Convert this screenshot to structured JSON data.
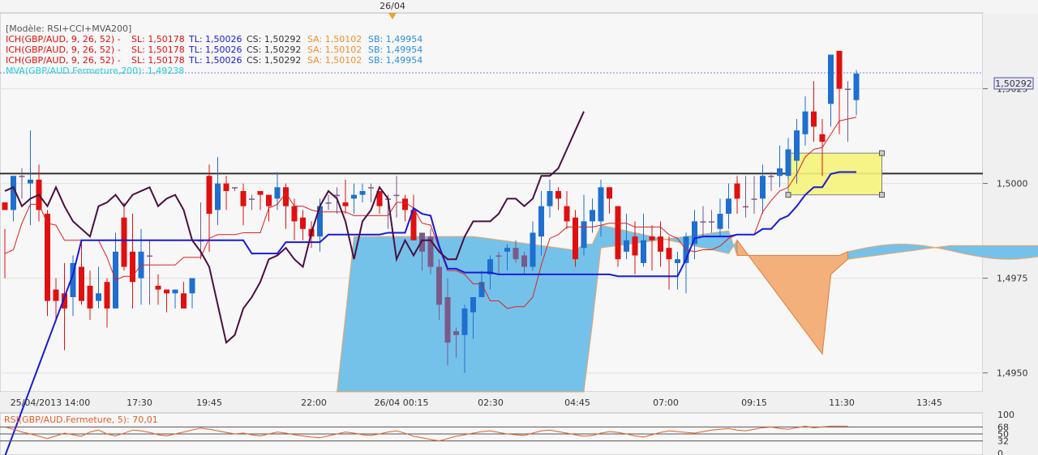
{
  "header": {
    "date_marker": "26/04"
  },
  "legend": {
    "model": "[Modèle: RSI+CCI+MVA200]",
    "ich_lines": [
      {
        "prefix": "ICH(GBP/AUD, 9, 26, 52) -",
        "sl": "SL: 1,50178",
        "tl": "TL: 1,50026",
        "cs": "CS: 1,50292",
        "sa": "SA: 1,50102",
        "sb": "SB: 1,49954"
      },
      {
        "prefix": "ICH(GBP/AUD, 9, 26, 52) -",
        "sl": "SL: 1,50178",
        "tl": "TL: 1,50026",
        "cs": "CS: 1,50292",
        "sa": "SA: 1,50102",
        "sb": "SB: 1,49954"
      },
      {
        "prefix": "ICH(GBP/AUD, 9, 26, 52) -",
        "sl": "SL: 1,50178",
        "tl": "TL: 1,50026",
        "cs": "CS: 1,50292",
        "sa": "SA: 1,50102",
        "sb": "SB: 1,49954"
      }
    ],
    "mva": "MVA(GBP/AUD.Fermeture,200): 1,49238"
  },
  "colors": {
    "bull": "#1e6fd0",
    "bear": "#e01010",
    "neutral": "#7a5a8a",
    "cloud_blue": "#6ec0ea",
    "cloud_orange": "#f4b07a",
    "kijun": "#1a1ad8",
    "tenkan": "#e02020",
    "chikou": "#4a1040",
    "level": "#333333",
    "rsi": "#e0602a",
    "mva": "#22d0e0",
    "zone": "#f6f47a"
  },
  "chart_data": [
    {
      "type": "candlestick",
      "symbol": "GBP/AUD",
      "ylim": [
        1.4945,
        1.5045
      ],
      "yticks": [
        "1,4950",
        "1,4975",
        "1,5000",
        "1,5025"
      ],
      "xticks": [
        "25/04/2013 14:00",
        "17:30",
        "19:45",
        "22:00",
        "26/04 00:15",
        "02:30",
        "04:45",
        "07:00",
        "09:15",
        "11:30",
        "13:45"
      ],
      "last_price": "1,50292",
      "horizontal_level": 1.50026,
      "candles": [
        [
          1.4995,
          1.4993,
          1.4988,
          1.4975
        ],
        [
          1.4993,
          1.5002,
          1.499,
          1.4994
        ],
        [
          1.5002,
          1.5002,
          1.5004,
          1.4996
        ],
        [
          1.5,
          1.5001,
          1.5014,
          1.4989
        ],
        [
          1.5001,
          1.4993,
          1.5005,
          1.499
        ],
        [
          1.4992,
          1.4969,
          1.4993,
          1.4965
        ],
        [
          1.4972,
          1.4969,
          1.4975,
          1.4964
        ],
        [
          1.4971,
          1.4967,
          1.4979,
          1.4956
        ],
        [
          1.497,
          1.4979,
          1.4981,
          1.4965
        ],
        [
          1.4978,
          1.4969,
          1.4985,
          1.4968
        ],
        [
          1.4973,
          1.4967,
          1.4977,
          1.4964
        ],
        [
          1.4969,
          1.4971,
          1.4978,
          1.4967
        ],
        [
          1.4974,
          1.4967,
          1.4975,
          1.4962
        ],
        [
          1.4967,
          1.4982,
          1.4987,
          1.4967
        ],
        [
          1.4991,
          1.4978,
          1.4995,
          1.4977
        ],
        [
          1.4982,
          1.4974,
          1.4992,
          1.4967
        ],
        [
          1.4975,
          1.4982,
          1.4988,
          1.4968
        ],
        [
          1.4981,
          1.4981,
          1.4985,
          1.4968
        ],
        [
          1.4973,
          1.4972,
          1.4976,
          1.4968
        ],
        [
          1.4972,
          1.4971,
          1.4972,
          1.4966
        ],
        [
          1.4971,
          1.4972,
          1.4972,
          1.4967
        ],
        [
          1.4971,
          1.4967,
          1.4974,
          1.4967
        ],
        [
          1.4971,
          1.4975,
          1.4975,
          1.4967
        ],
        [
          1.4985,
          1.4985,
          1.4995,
          1.498
        ],
        [
          1.5002,
          1.4992,
          1.5005,
          1.4982
        ],
        [
          1.4993,
          1.5,
          1.5007,
          1.4989
        ],
        [
          1.5,
          1.4998,
          1.5002,
          1.4993
        ],
        [
          1.4999,
          1.4999,
          1.4999,
          1.4998
        ],
        [
          1.4998,
          1.4994,
          1.5,
          1.4989
        ],
        [
          1.4996,
          1.4996,
          1.4997,
          1.4993
        ],
        [
          1.4998,
          1.4997,
          1.4998,
          1.4993
        ],
        [
          1.4997,
          1.4994,
          1.4997,
          1.499
        ],
        [
          1.4996,
          1.4999,
          1.5003,
          1.4993
        ],
        [
          1.4999,
          1.4994,
          1.5,
          1.4988
        ],
        [
          1.4994,
          1.499,
          1.4996,
          1.4985
        ],
        [
          1.4991,
          1.4988,
          1.4993,
          1.4985
        ],
        [
          1.4988,
          1.4986,
          1.499,
          1.4983
        ],
        [
          1.4986,
          1.4994,
          1.4996,
          1.4982
        ],
        [
          1.4995,
          1.4995,
          1.4997,
          1.4993
        ],
        [
          1.4997,
          1.4997,
          1.4999,
          1.4992
        ],
        [
          1.4995,
          1.4994,
          1.5001,
          1.4992
        ],
        [
          1.4996,
          1.4997,
          1.5,
          1.4992
        ],
        [
          1.4997,
          1.4998,
          1.5,
          1.4995
        ],
        [
          1.4999,
          1.4999,
          1.5,
          1.4995
        ],
        [
          1.4998,
          1.4994,
          1.4998,
          1.4992
        ],
        [
          1.4996,
          1.4996,
          1.4997,
          1.4988
        ],
        [
          1.4997,
          1.4997,
          1.5002,
          1.4991
        ],
        [
          1.4996,
          1.4993,
          1.4997,
          1.499
        ],
        [
          1.4993,
          1.4985,
          1.4997,
          1.4985
        ],
        [
          1.4987,
          1.4982,
          1.4987,
          1.4977
        ],
        [
          1.4986,
          1.4978,
          1.4988,
          1.4976
        ],
        [
          1.4978,
          1.4968,
          1.498,
          1.4964
        ],
        [
          1.497,
          1.4958,
          1.4975,
          1.4952
        ],
        [
          1.4961,
          1.496,
          1.4962,
          1.4954
        ],
        [
          1.496,
          1.4967,
          1.4968,
          1.495
        ],
        [
          1.4966,
          1.497,
          1.497,
          1.4959
        ],
        [
          1.497,
          1.4974,
          1.4977,
          1.497
        ],
        [
          1.4976,
          1.498,
          1.4981,
          1.4972
        ],
        [
          1.4981,
          1.4981,
          1.4982,
          1.4976
        ],
        [
          1.4982,
          1.4983,
          1.4984,
          1.4977
        ],
        [
          1.4983,
          1.498,
          1.4985,
          1.4979
        ],
        [
          1.4981,
          1.4978,
          1.4982,
          1.4976
        ],
        [
          1.4978,
          1.4987,
          1.499,
          1.4977
        ],
        [
          1.4986,
          1.4994,
          1.4998,
          1.4981
        ],
        [
          1.4994,
          1.4998,
          1.5001,
          1.4991
        ],
        [
          1.4998,
          1.4996,
          1.4999,
          1.4993
        ],
        [
          1.4994,
          1.499,
          1.4998,
          1.4988
        ],
        [
          1.4991,
          1.498,
          1.4993,
          1.4978
        ],
        [
          1.4983,
          1.499,
          1.4997,
          1.4981
        ],
        [
          1.499,
          1.4993,
          1.4996,
          1.4987
        ],
        [
          1.499,
          1.4999,
          1.5001,
          1.4986
        ],
        [
          1.4999,
          1.4996,
          1.4999,
          1.4992
        ],
        [
          1.4994,
          1.498,
          1.4994,
          1.4978
        ],
        [
          1.4982,
          1.4985,
          1.4992,
          1.498
        ],
        [
          1.4986,
          1.4981,
          1.499,
          1.4976
        ],
        [
          1.4979,
          1.4985,
          1.4992,
          1.4978
        ],
        [
          1.4986,
          1.4985,
          1.4989,
          1.4977
        ],
        [
          1.4986,
          1.4982,
          1.499,
          1.4978
        ],
        [
          1.4983,
          1.498,
          1.4986,
          1.4972
        ],
        [
          1.4979,
          1.498,
          1.4982,
          1.4972
        ],
        [
          1.4979,
          1.4986,
          1.4987,
          1.4971
        ],
        [
          1.4984,
          1.499,
          1.4993,
          1.498
        ],
        [
          1.499,
          1.499,
          1.4994,
          1.4986
        ],
        [
          1.499,
          1.499,
          1.4993,
          1.4987
        ],
        [
          1.4988,
          1.4992,
          1.4996,
          1.4986
        ],
        [
          1.4992,
          1.4996,
          1.5,
          1.4988
        ],
        [
          1.5,
          1.4996,
          1.5002,
          1.4992
        ],
        [
          1.4994,
          1.4994,
          1.5002,
          1.4991
        ],
        [
          1.4996,
          1.4996,
          1.5002,
          1.4992
        ],
        [
          1.4996,
          1.5002,
          1.5005,
          1.4992
        ],
        [
          1.5002,
          1.5002,
          1.5003,
          1.4998
        ],
        [
          1.5002,
          1.5004,
          1.501,
          1.4999
        ],
        [
          1.5002,
          1.5009,
          1.5012,
          1.5001
        ],
        [
          1.5006,
          1.5014,
          1.5017,
          1.5
        ],
        [
          1.5013,
          1.5019,
          1.5023,
          1.501
        ],
        [
          1.5019,
          1.5015,
          1.5027,
          1.5011
        ],
        [
          1.5013,
          1.5011,
          1.5017,
          1.5002
        ],
        [
          1.5021,
          1.5034,
          1.5034,
          1.5015
        ],
        [
          1.5035,
          1.5025,
          1.5035,
          1.5013
        ],
        [
          1.5025,
          1.5025,
          1.5027,
          1.5011
        ],
        [
          1.5022,
          1.5029,
          1.503,
          1.5018
        ]
      ],
      "indicators": [
        "Kijun (blue): 1.4928 at first bar rising to 1.4985 by bar 5, flat 1.4985 to bar 18, 1.4987-1.4990 to bar 40, 1.4992 around bar 42-46, falling to 1.4980 by bar 50, flat 1.4980 to bar 80, 1.4982 to bar 89, rising 1.4998 at bar 92, 1.5002 at bar 95, flat 1.50026 to bar 99",
        "Tenkan (red): follows price; last value 1.50178",
        "Chikou (dark purple): lagged close, ends near 1.5029 around 04:45",
        "Senkou span A 1.50102, span B 1.49954 at last bar; cloud projected to ~13:45",
        "MVA 200: 1.49238"
      ],
      "rectangle": "yellow zone 1.4997 to 1.5008 from about 10:00 to 12:15"
    },
    {
      "type": "line",
      "title": "RSI(GBP/AUD.Fermeture, 5): 70,01",
      "ylim": [
        0,
        100
      ],
      "yticks": [
        "100",
        "68",
        "50",
        "32",
        "0"
      ],
      "series": [
        {
          "name": "RSI 5",
          "values": [
            68,
            62,
            55,
            50,
            44,
            38,
            45,
            52,
            48,
            44,
            55,
            60,
            50,
            45,
            52,
            60,
            58,
            54,
            48,
            45,
            50,
            55,
            60,
            65,
            62,
            58,
            54,
            50,
            52,
            48,
            45,
            50,
            55,
            52,
            48,
            45,
            42,
            40,
            45,
            50,
            55,
            52,
            48,
            46,
            50,
            55,
            58,
            52,
            44,
            40,
            36,
            32,
            38,
            44,
            48,
            52,
            56,
            58,
            54,
            50,
            48,
            46,
            52,
            58,
            60,
            56,
            52,
            48,
            44,
            46,
            52,
            56,
            54,
            50,
            45,
            42,
            48,
            54,
            58,
            56,
            54,
            52,
            56,
            60,
            62,
            64,
            60,
            58,
            62,
            66,
            68,
            64,
            62,
            66,
            70,
            66,
            68,
            70,
            70,
            70
          ]
        }
      ]
    }
  ]
}
